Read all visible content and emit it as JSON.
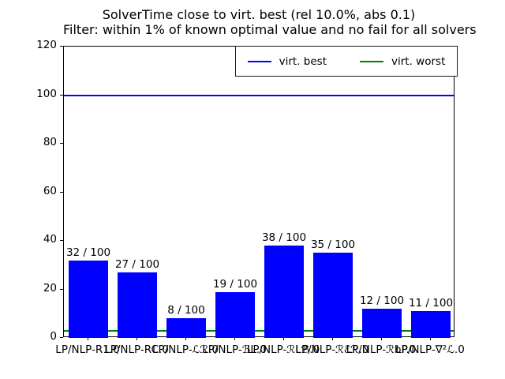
{
  "chart_data": {
    "type": "bar",
    "title": "SolverTime close to virt. best (rel 10.0%, abs 0.1)",
    "subtitle": "Filter: within 1% of known optimal value and no fail for all solvers",
    "categories": [
      "LP/NLP-R1.0",
      "LP/NLP-RC.0",
      "LP/NLP-ℒℛ.0",
      "LP/NLP-ℬL.0",
      "LP/NLP-ℛLℬ.0",
      "LP/NLP-ℛℰℛ.0",
      "LP/NLP-ℛbP.0",
      "LP/NLP-∇²ℒ.0"
    ],
    "values": [
      32,
      27,
      8,
      19,
      38,
      35,
      12,
      11
    ],
    "bar_labels": [
      "32 / 100",
      "27 / 100",
      "8 / 100",
      "19 / 100",
      "38 / 100",
      "35 / 100",
      "12 / 100",
      "11 / 100"
    ],
    "total_instances": 100,
    "ylim": [
      0,
      120
    ],
    "yticks": [
      0,
      20,
      40,
      60,
      80,
      100,
      120
    ],
    "bar_color": "#0000ff",
    "grid": false,
    "legend_position": "upper center",
    "hlines": [
      {
        "label": "virt. best",
        "value": 100,
        "color": "#0000ff"
      },
      {
        "label": "virt. worst",
        "value": 3,
        "color": "#008000"
      }
    ]
  }
}
